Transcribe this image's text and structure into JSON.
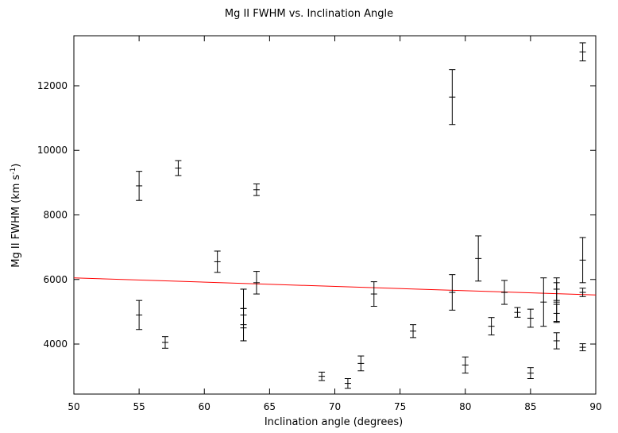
{
  "chart_data": {
    "type": "scatter",
    "title": "Mg II FWHM vs. Inclination Angle",
    "xlabel": "Inclination angle (degrees)",
    "ylabel_main": "Mg II FWHM (km s",
    "ylabel_sup": "-1",
    "ylabel_end": ")",
    "xlim": [
      50,
      90
    ],
    "ylim": [
      2450,
      13550
    ],
    "xticks": [
      50,
      55,
      60,
      65,
      70,
      75,
      80,
      85,
      90
    ],
    "yticks": [
      4000,
      6000,
      8000,
      10000,
      12000
    ],
    "grid": false,
    "fit_line": {
      "x": [
        50,
        90
      ],
      "y": [
        6050,
        5520
      ],
      "color": "#ff0000"
    },
    "points": [
      {
        "x": 55,
        "y": 8900,
        "err": 450
      },
      {
        "x": 55,
        "y": 4900,
        "err": 450
      },
      {
        "x": 57,
        "y": 4050,
        "err": 180
      },
      {
        "x": 58,
        "y": 9450,
        "err": 230
      },
      {
        "x": 61,
        "y": 6550,
        "err": 330
      },
      {
        "x": 63,
        "y": 5100,
        "err": 600
      },
      {
        "x": 63,
        "y": 4900,
        "err": 800
      },
      {
        "x": 63,
        "y": 4600,
        "err": 500
      },
      {
        "x": 64,
        "y": 8780,
        "err": 180
      },
      {
        "x": 64,
        "y": 5900,
        "err": 350
      },
      {
        "x": 69,
        "y": 3000,
        "err": 130
      },
      {
        "x": 71,
        "y": 2780,
        "err": 150
      },
      {
        "x": 72,
        "y": 3400,
        "err": 230
      },
      {
        "x": 73,
        "y": 5550,
        "err": 380
      },
      {
        "x": 76,
        "y": 4400,
        "err": 200
      },
      {
        "x": 79,
        "y": 11650,
        "err": 850
      },
      {
        "x": 79,
        "y": 5600,
        "err": 550
      },
      {
        "x": 80,
        "y": 3350,
        "err": 250
      },
      {
        "x": 81,
        "y": 6650,
        "err": 700
      },
      {
        "x": 82,
        "y": 4550,
        "err": 270
      },
      {
        "x": 83,
        "y": 5600,
        "err": 370
      },
      {
        "x": 84,
        "y": 4980,
        "err": 150
      },
      {
        "x": 85,
        "y": 4800,
        "err": 280
      },
      {
        "x": 85,
        "y": 3100,
        "err": 170
      },
      {
        "x": 86,
        "y": 5300,
        "err": 750
      },
      {
        "x": 87,
        "y": 5700,
        "err": 350
      },
      {
        "x": 87,
        "y": 5300,
        "err": 600
      },
      {
        "x": 87,
        "y": 4950,
        "err": 280
      },
      {
        "x": 87,
        "y": 4100,
        "err": 250
      },
      {
        "x": 89,
        "y": 13050,
        "err": 280
      },
      {
        "x": 89,
        "y": 6600,
        "err": 700
      },
      {
        "x": 89,
        "y": 5600,
        "err": 130
      },
      {
        "x": 89,
        "y": 3900,
        "err": 110
      }
    ]
  }
}
